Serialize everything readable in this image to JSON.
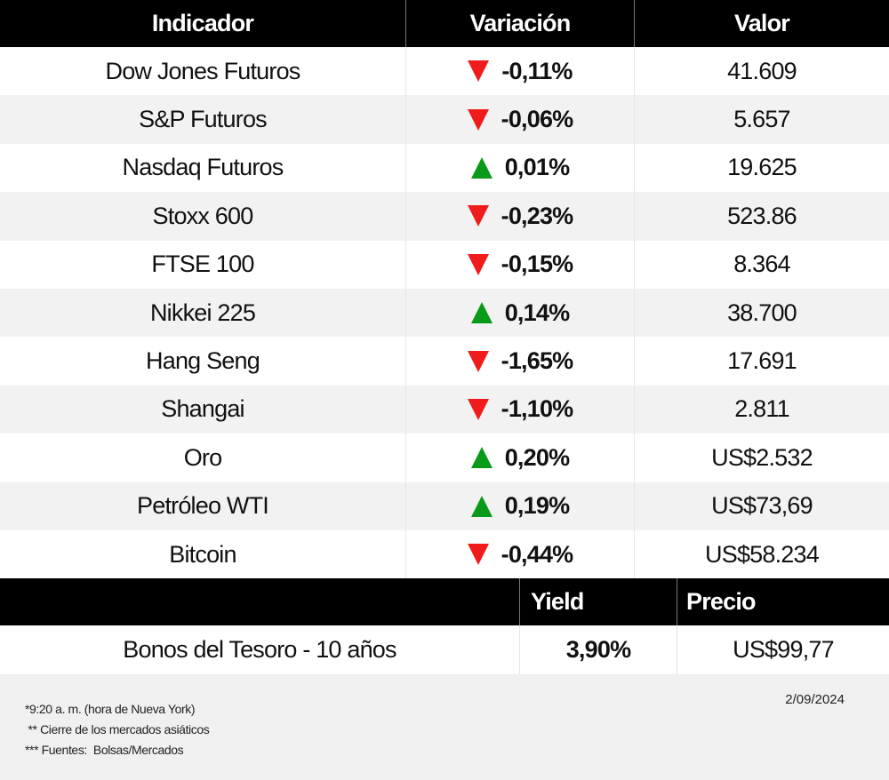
{
  "table": {
    "headers": {
      "indicator": "Indicador",
      "variation": "Variación",
      "value": "Valor"
    },
    "rows": [
      {
        "name": "Dow Jones Futuros",
        "direction": "down",
        "variation": "-0,11%",
        "value": "41.609"
      },
      {
        "name": "S&P Futuros",
        "direction": "down",
        "variation": "-0,06%",
        "value": "5.657"
      },
      {
        "name": "Nasdaq Futuros",
        "direction": "up",
        "variation": "0,01%",
        "value": "19.625"
      },
      {
        "name": "Stoxx 600",
        "direction": "down",
        "variation": "-0,23%",
        "value": "523.86"
      },
      {
        "name": "FTSE 100",
        "direction": "down",
        "variation": "-0,15%",
        "value": "8.364"
      },
      {
        "name": "Nikkei 225",
        "direction": "up",
        "variation": "0,14%",
        "value": "38.700"
      },
      {
        "name": "Hang Seng",
        "direction": "down",
        "variation": "-1,65%",
        "value": "17.691"
      },
      {
        "name": "Shangai",
        "direction": "down",
        "variation": "-1,10%",
        "value": "2.811"
      },
      {
        "name": "Oro",
        "direction": "up",
        "variation": "0,20%",
        "value": "US$2.532"
      },
      {
        "name": "Petróleo WTI",
        "direction": "up",
        "variation": "0,19%",
        "value": "US$73,69"
      },
      {
        "name": "Bitcoin",
        "direction": "down",
        "variation": "-0,44%",
        "value": "US$58.234"
      }
    ]
  },
  "bonds": {
    "headers": {
      "yield": "Yield",
      "price": "Precio"
    },
    "row": {
      "name": "Bonos del Tesoro - 10 años",
      "yield": "3,90%",
      "price": "US$99,77"
    }
  },
  "footer": {
    "notes": [
      "*9:20 a. m. (hora de Nueva York)",
      " ** Cierre de los mercados asiáticos",
      "*** Fuentes:  Bolsas/Mercados"
    ],
    "date": "2/09/2024"
  },
  "colors": {
    "down": "#f01c1c",
    "up": "#0a9a1a",
    "header_bg": "#000000",
    "stripe": "#f2f2f2"
  }
}
